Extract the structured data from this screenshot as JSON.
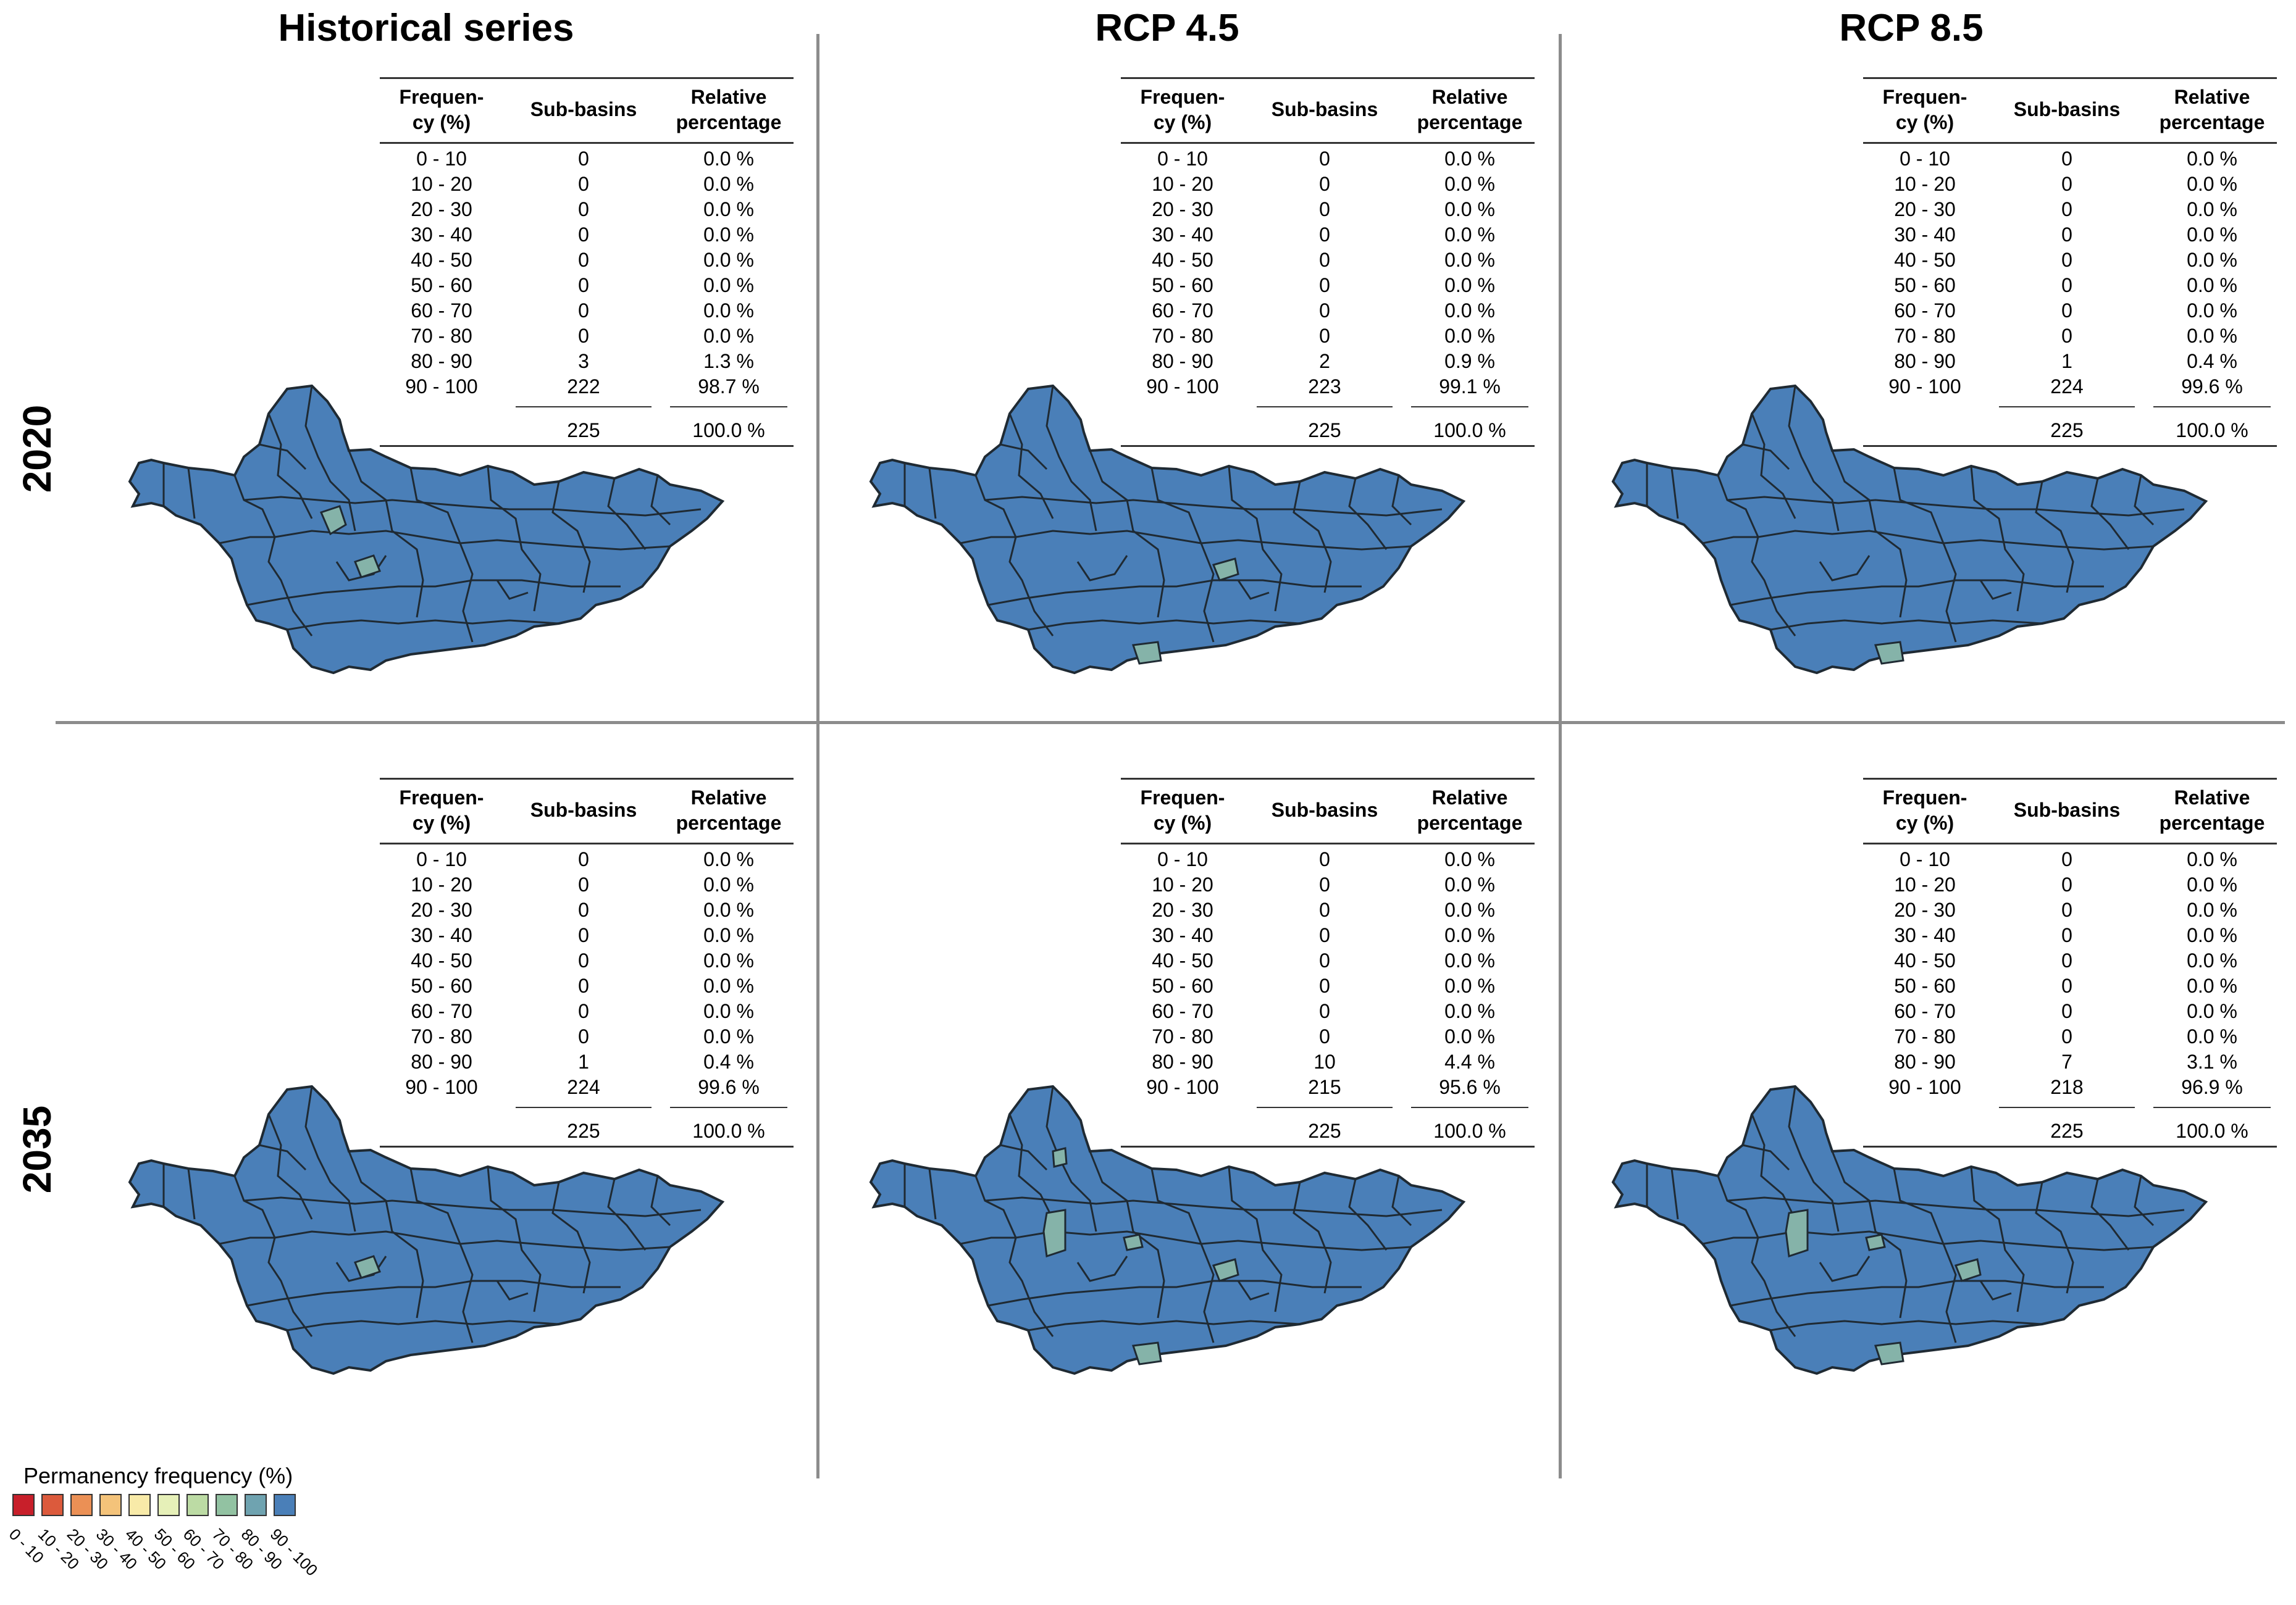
{
  "columns": [
    "Historical series",
    "RCP 4.5",
    "RCP 8.5"
  ],
  "rows": [
    "2020",
    "2035"
  ],
  "table_headers": {
    "freq": "Frequen-\ncy (%)",
    "subbasins": "Sub-basins",
    "relative": "Relative\npercentage"
  },
  "ranges": [
    "0 - 10",
    "10 - 20",
    "20 - 30",
    "30 - 40",
    "40 - 50",
    "50 - 60",
    "60 - 70",
    "70 - 80",
    "80 - 90",
    "90 - 100"
  ],
  "panels": [
    {
      "id": "hist-2020",
      "counts": [
        "0",
        "0",
        "0",
        "0",
        "0",
        "0",
        "0",
        "0",
        "3",
        "222"
      ],
      "percents": [
        "0.0 %",
        "0.0 %",
        "0.0 %",
        "0.0 %",
        "0.0 %",
        "0.0 %",
        "0.0 %",
        "0.0 %",
        "1.3 %",
        "98.7 %"
      ],
      "total": "225",
      "total_pct": "100.0 %"
    },
    {
      "id": "rcp45-2020",
      "counts": [
        "0",
        "0",
        "0",
        "0",
        "0",
        "0",
        "0",
        "0",
        "2",
        "223"
      ],
      "percents": [
        "0.0 %",
        "0.0 %",
        "0.0 %",
        "0.0 %",
        "0.0 %",
        "0.0 %",
        "0.0 %",
        "0.0 %",
        "0.9 %",
        "99.1 %"
      ],
      "total": "225",
      "total_pct": "100.0 %"
    },
    {
      "id": "rcp85-2020",
      "counts": [
        "0",
        "0",
        "0",
        "0",
        "0",
        "0",
        "0",
        "0",
        "1",
        "224"
      ],
      "percents": [
        "0.0 %",
        "0.0 %",
        "0.0 %",
        "0.0 %",
        "0.0 %",
        "0.0 %",
        "0.0 %",
        "0.0 %",
        "0.4 %",
        "99.6 %"
      ],
      "total": "225",
      "total_pct": "100.0 %"
    },
    {
      "id": "hist-2035",
      "counts": [
        "0",
        "0",
        "0",
        "0",
        "0",
        "0",
        "0",
        "0",
        "1",
        "224"
      ],
      "percents": [
        "0.0 %",
        "0.0 %",
        "0.0 %",
        "0.0 %",
        "0.0 %",
        "0.0 %",
        "0.0 %",
        "0.0 %",
        "0.4 %",
        "99.6 %"
      ],
      "total": "225",
      "total_pct": "100.0 %"
    },
    {
      "id": "rcp45-2035",
      "counts": [
        "0",
        "0",
        "0",
        "0",
        "0",
        "0",
        "0",
        "0",
        "10",
        "215"
      ],
      "percents": [
        "0.0 %",
        "0.0 %",
        "0.0 %",
        "0.0 %",
        "0.0 %",
        "0.0 %",
        "0.0 %",
        "0.0 %",
        "4.4 %",
        "95.6 %"
      ],
      "total": "225",
      "total_pct": "100.0 %"
    },
    {
      "id": "rcp85-2035",
      "counts": [
        "0",
        "0",
        "0",
        "0",
        "0",
        "0",
        "0",
        "0",
        "7",
        "218"
      ],
      "percents": [
        "0.0 %",
        "0.0 %",
        "0.0 %",
        "0.0 %",
        "0.0 %",
        "0.0 %",
        "0.0 %",
        "0.0 %",
        "3.1 %",
        "96.9 %"
      ],
      "total": "225",
      "total_pct": "100.0 %"
    }
  ],
  "legend": {
    "title": "Permanency frequency (%)",
    "labels": [
      "0 - 10",
      "10 - 20",
      "20 - 30",
      "30 - 40",
      "40 - 50",
      "50 - 60",
      "60 - 70",
      "70 - 80",
      "80 - 90",
      "90 - 100"
    ],
    "colors": [
      "#c81f2a",
      "#dc5a3c",
      "#eb9055",
      "#f4c37a",
      "#f8eaa8",
      "#e6f0b8",
      "#bcdba4",
      "#92c2a2",
      "#6fa3b0",
      "#4a7fb8"
    ]
  },
  "map_colors": {
    "fill": "#4a7fb8",
    "highlight": "#85b3a9",
    "stroke": "#1f2a33"
  }
}
